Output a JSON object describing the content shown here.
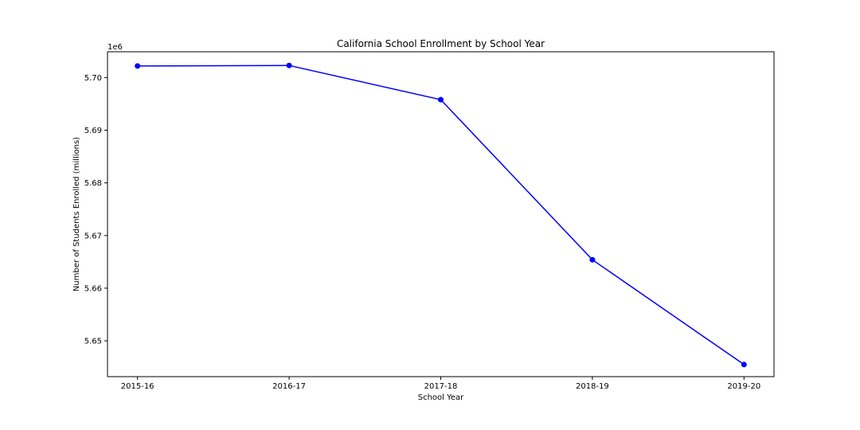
{
  "chart_data": {
    "type": "line",
    "title": "California School Enrollment by School Year",
    "xlabel": "School Year",
    "ylabel": "Number of Students Enrolled (millions)",
    "y_offset_label": "1e6",
    "categories": [
      "2015-16",
      "2016-17",
      "2017-18",
      "2018-19",
      "2019-20"
    ],
    "series": [
      {
        "values": [
          5702200,
          5702300,
          5695800,
          5665400,
          5645500
        ]
      }
    ],
    "ylim": [
      5643200,
      5704900
    ],
    "yticks": [
      5650000,
      5660000,
      5670000,
      5680000,
      5690000,
      5700000
    ],
    "ytick_labels": [
      "5.65",
      "5.66",
      "5.67",
      "5.68",
      "5.69",
      "5.70"
    ],
    "grid": false,
    "legend": "none",
    "line_color": "#0000ff",
    "marker_color": "#0000ff"
  }
}
